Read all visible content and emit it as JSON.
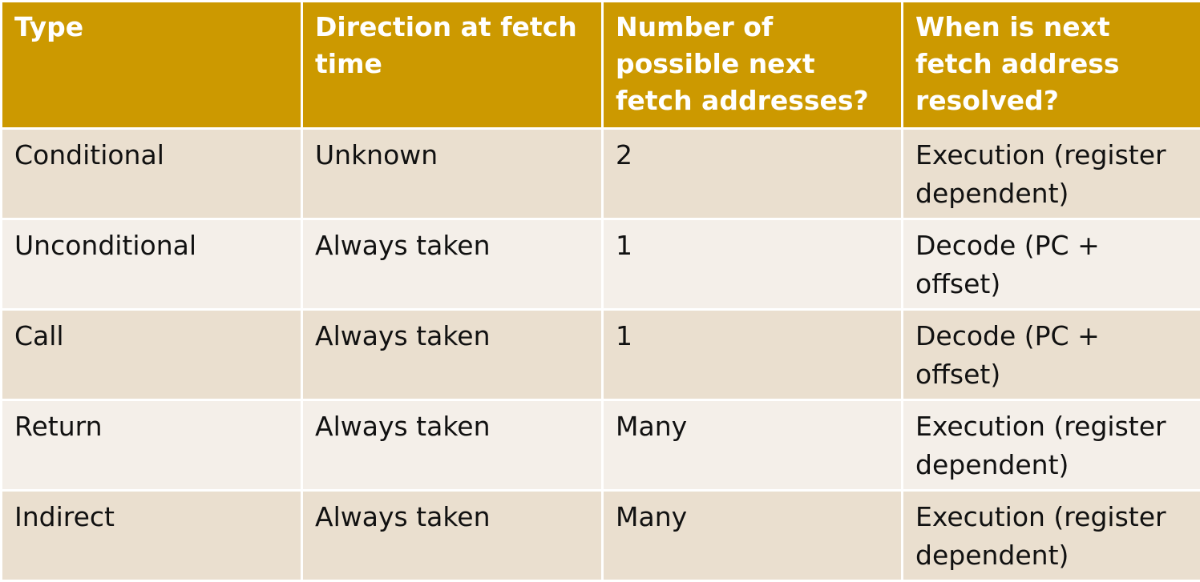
{
  "table": {
    "headers": [
      "Type",
      "Direction at fetch time",
      "Number of possible next fetch addresses?",
      "When is next fetch address resolved?"
    ],
    "rows": [
      [
        "Conditional",
        "Unknown",
        "2",
        "Execution (register dependent)"
      ],
      [
        "Unconditional",
        "Always taken",
        "1",
        "Decode (PC + offset)"
      ],
      [
        "Call",
        "Always taken",
        "1",
        "Decode (PC + offset)"
      ],
      [
        "Return",
        "Always taken",
        "Many",
        "Execution (register dependent)"
      ],
      [
        "Indirect",
        "Always taken",
        "Many",
        "Execution (register dependent)"
      ]
    ]
  },
  "colors": {
    "header_bg": "#cc9900",
    "header_text": "#ffffff",
    "row_odd_bg": "#eadfcf",
    "row_even_bg": "#f4efe9",
    "border": "#ffffff"
  }
}
